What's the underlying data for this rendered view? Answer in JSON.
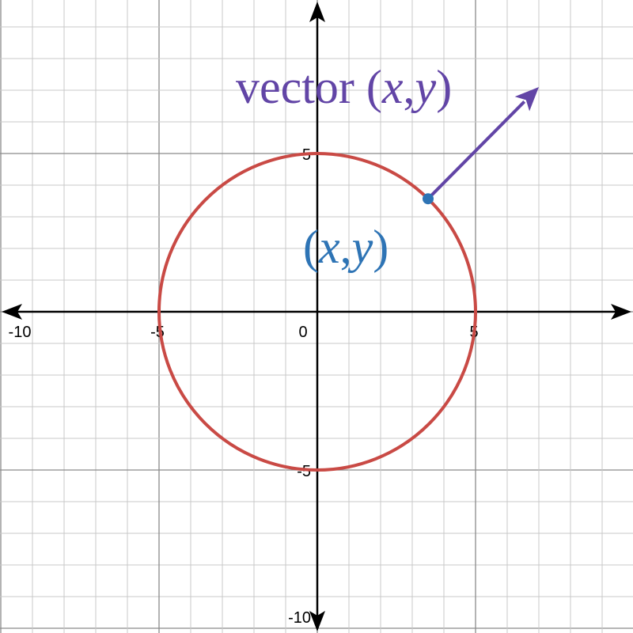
{
  "graph": {
    "x_ticks": [
      {
        "label": "-10",
        "value": -10
      },
      {
        "label": "-5",
        "value": -5
      },
      {
        "label": "0",
        "value": 0
      },
      {
        "label": "5",
        "value": 5
      }
    ],
    "y_ticks": [
      {
        "label": "5",
        "value": 5
      },
      {
        "label": "-5",
        "value": -5
      },
      {
        "label": "-10",
        "value": -10
      }
    ],
    "circle": {
      "center": [
        0,
        0
      ],
      "radius": 5,
      "color": "#c94a45"
    },
    "point": {
      "x": 3.5,
      "y": 3.57,
      "color": "#2e74b5"
    },
    "vector": {
      "to": [
        7,
        7.1
      ],
      "color": "#6245a6"
    },
    "vector_label": {
      "word": "vector ",
      "open": "(",
      "x": "x",
      "comma": ",",
      "y": "y",
      "close": ")",
      "color": "#6245a6"
    },
    "point_label": {
      "open": "(",
      "x": "x",
      "comma": ",",
      "y": "y",
      "close": ")",
      "color": "#2e74b5"
    },
    "colors": {
      "grid_minor": "#c8c8c8",
      "grid_major": "#8a8a8a",
      "axis": "#000000"
    }
  }
}
